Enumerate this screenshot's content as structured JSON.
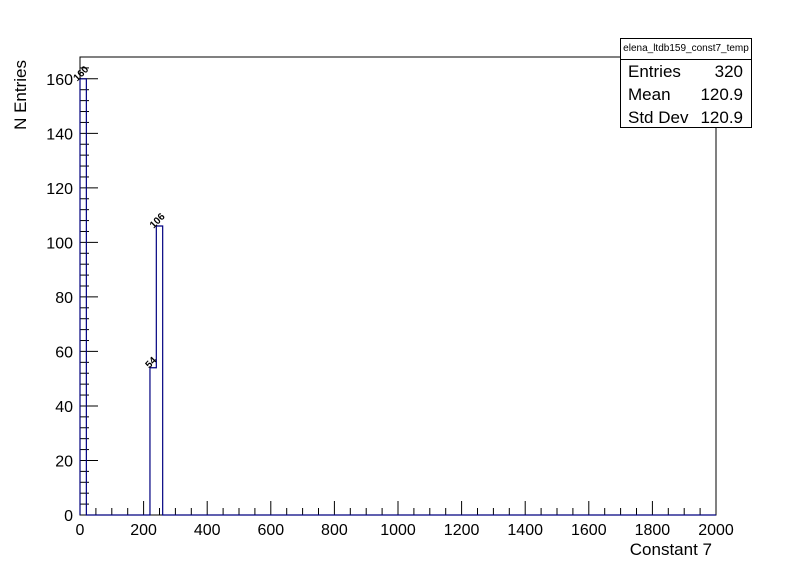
{
  "chart_data": {
    "type": "bar",
    "histogram_name": "elena_ltdb159_const7_temp",
    "xlabel": "Constant 7",
    "ylabel": "N Entries",
    "xlim": [
      0,
      2000
    ],
    "ylim": [
      0,
      168
    ],
    "x_ticks": [
      0,
      200,
      400,
      600,
      800,
      1000,
      1200,
      1400,
      1600,
      1800,
      2000
    ],
    "y_ticks": [
      0,
      20,
      40,
      60,
      80,
      100,
      120,
      140,
      160
    ],
    "bin_width": 20,
    "bins": [
      {
        "x0": 0,
        "x1": 20,
        "value": 160,
        "label": "160"
      },
      {
        "x0": 220,
        "x1": 240,
        "value": 54,
        "label": "54"
      },
      {
        "x0": 240,
        "x1": 260,
        "value": 106,
        "label": "106"
      }
    ],
    "line_color": "#000080",
    "grid": false
  },
  "stats": {
    "title": "elena_ltdb159_const7_temp",
    "rows": [
      {
        "label": "Entries",
        "value": "320"
      },
      {
        "label": "Mean",
        "value": "120.9"
      },
      {
        "label": "Std Dev",
        "value": "120.9"
      }
    ]
  }
}
